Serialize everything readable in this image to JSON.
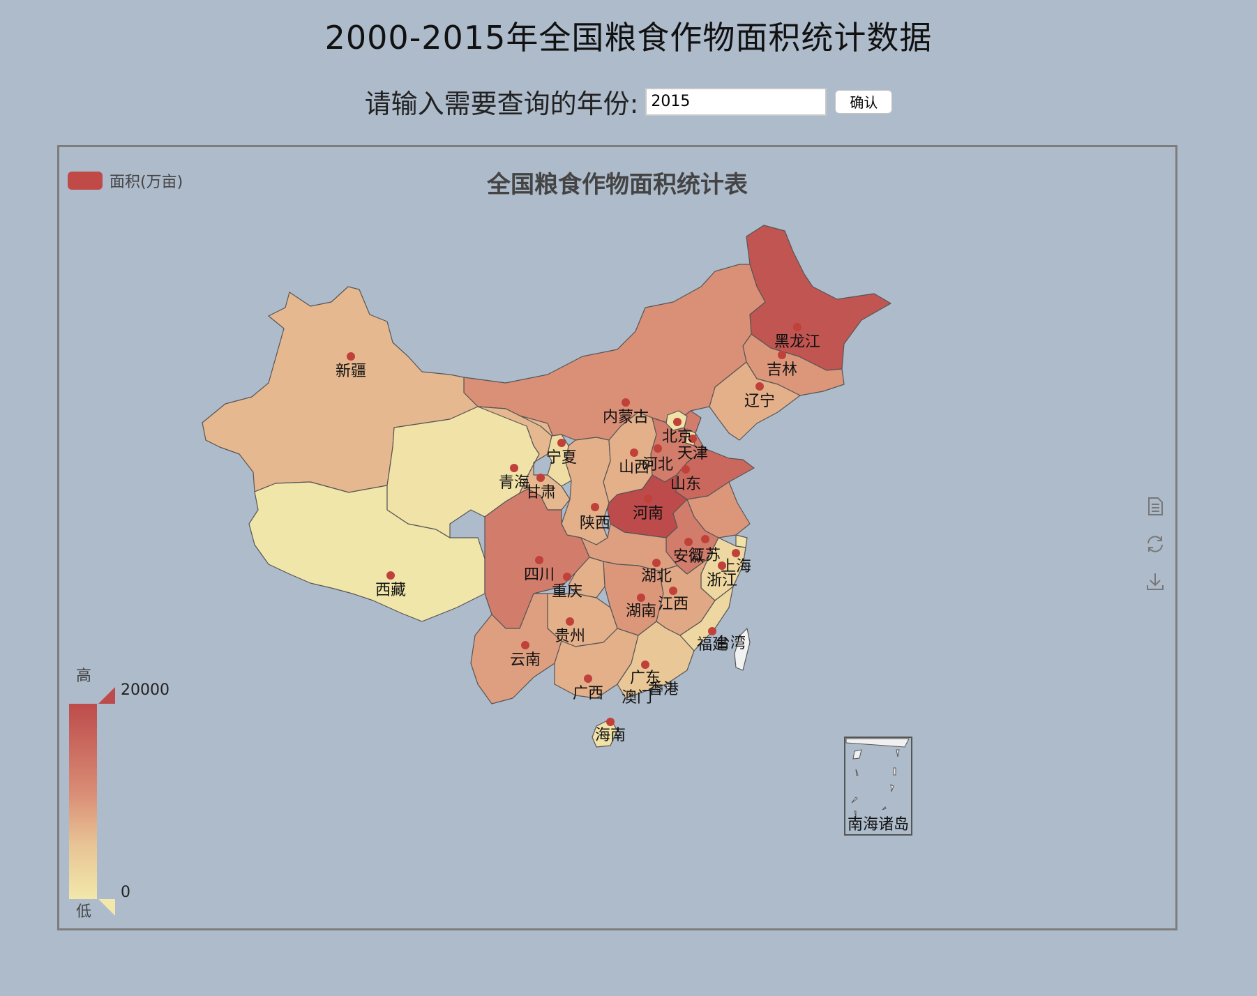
{
  "page": {
    "title": "2000-2015年全国粮食作物面积统计数据"
  },
  "query": {
    "label": "请输入需要查询的年份:",
    "year_value": "2015",
    "confirm_label": "确认"
  },
  "chart": {
    "title": "全国粮食作物面积统计表",
    "legend_label": "面积(万亩)",
    "visual_map": {
      "high_text": "高",
      "low_text": "低",
      "max_label": "20000",
      "min_label": "0",
      "min": 0,
      "max": 20000,
      "colors": [
        "#f2e8ab",
        "#e8c395",
        "#d98c75",
        "#bd4b4b"
      ]
    },
    "toolbox": [
      "data-view-icon",
      "restore-icon",
      "save-image-icon"
    ],
    "south_china_sea_label": "南海诸岛"
  },
  "chart_data": {
    "type": "map",
    "map": "china",
    "visual_map_range": [
      0,
      20000
    ],
    "regions": [
      {
        "name": "黑龙江",
        "level": 0.95
      },
      {
        "name": "吉林",
        "level": 0.6
      },
      {
        "name": "辽宁",
        "level": 0.45
      },
      {
        "name": "内蒙古",
        "level": 0.65
      },
      {
        "name": "新疆",
        "level": 0.4
      },
      {
        "name": "西藏",
        "level": 0.02
      },
      {
        "name": "青海",
        "level": 0.05
      },
      {
        "name": "甘肃",
        "level": 0.4
      },
      {
        "name": "宁夏",
        "level": 0.1
      },
      {
        "name": "陕西",
        "level": 0.45
      },
      {
        "name": "山西",
        "level": 0.45
      },
      {
        "name": "河北",
        "level": 0.75
      },
      {
        "name": "北京",
        "level": 0.05
      },
      {
        "name": "天津",
        "level": 0.1
      },
      {
        "name": "山东",
        "level": 0.85
      },
      {
        "name": "河南",
        "level": 1.0
      },
      {
        "name": "江苏",
        "level": 0.6
      },
      {
        "name": "安徽",
        "level": 0.75
      },
      {
        "name": "上海",
        "level": 0.05
      },
      {
        "name": "浙江",
        "level": 0.15
      },
      {
        "name": "湖北",
        "level": 0.55
      },
      {
        "name": "湖南",
        "level": 0.6
      },
      {
        "name": "江西",
        "level": 0.5
      },
      {
        "name": "四川",
        "level": 0.75
      },
      {
        "name": "重庆",
        "level": 0.45
      },
      {
        "name": "贵州",
        "level": 0.45
      },
      {
        "name": "云南",
        "level": 0.55
      },
      {
        "name": "广西",
        "level": 0.45
      },
      {
        "name": "广东",
        "level": 0.3
      },
      {
        "name": "福建",
        "level": 0.15
      },
      {
        "name": "海南",
        "level": 0.05
      },
      {
        "name": "台湾",
        "level": null
      },
      {
        "name": "香港",
        "level": null
      },
      {
        "name": "澳门",
        "level": null
      }
    ]
  }
}
